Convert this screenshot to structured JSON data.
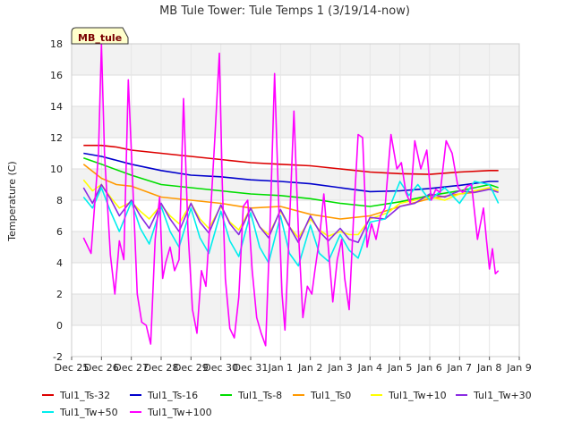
{
  "chart_data": {
    "type": "line",
    "title": "MB Tule Tower: Tule Temps 1 (3/19/14-now)",
    "ylabel": "Temperature (C)",
    "xlabel": "",
    "badge": "MB_tule",
    "x_ticks": [
      "Dec 25",
      "Dec 26",
      "Dec 27",
      "Dec 28",
      "Dec 29",
      "Dec 30",
      "Dec 31",
      "Jan 1",
      "Jan 2",
      "Jan 3",
      "Jan 4",
      "Jan 5",
      "Jan 6",
      "Jan 7",
      "Jan 8",
      "Jan 9"
    ],
    "y_ticks": [
      -2,
      0,
      2,
      4,
      6,
      8,
      10,
      12,
      14,
      16,
      18
    ],
    "xlim": [
      0,
      15
    ],
    "ylim": [
      -2,
      18
    ],
    "grid": true,
    "legend_position": "bottom",
    "series": [
      {
        "name": "Tul1_Ts-32",
        "color": "#dd0000",
        "x": [
          0.4,
          1.0,
          1.5,
          2.0,
          3.0,
          4.0,
          5.0,
          6.0,
          7.0,
          8.0,
          9.0,
          10.0,
          11.0,
          12.0,
          13.0,
          14.0,
          14.3
        ],
        "y": [
          11.5,
          11.5,
          11.4,
          11.2,
          11.0,
          10.8,
          10.6,
          10.4,
          10.3,
          10.2,
          10.0,
          9.8,
          9.7,
          9.65,
          9.8,
          9.9,
          9.9
        ]
      },
      {
        "name": "Tul1_Ts-16",
        "color": "#0000cc",
        "x": [
          0.4,
          1.0,
          2.0,
          3.0,
          4.0,
          5.0,
          6.0,
          7.0,
          8.0,
          9.0,
          10.0,
          11.0,
          12.0,
          13.0,
          14.0,
          14.3
        ],
        "y": [
          11.0,
          10.8,
          10.3,
          9.9,
          9.6,
          9.5,
          9.3,
          9.2,
          9.05,
          8.8,
          8.55,
          8.6,
          8.75,
          8.95,
          9.2,
          9.2
        ]
      },
      {
        "name": "Tul1_Ts-8",
        "color": "#00dd00",
        "x": [
          0.4,
          1.0,
          2.0,
          3.0,
          4.0,
          5.0,
          6.0,
          7.0,
          8.0,
          9.0,
          10.0,
          11.0,
          12.0,
          13.0,
          13.5,
          14.0,
          14.3
        ],
        "y": [
          10.7,
          10.3,
          9.6,
          9.0,
          8.8,
          8.6,
          8.4,
          8.3,
          8.1,
          7.8,
          7.6,
          7.9,
          8.3,
          8.6,
          8.8,
          9.0,
          8.8
        ]
      },
      {
        "name": "Tul1_Ts0",
        "color": "#ff9900",
        "x": [
          0.4,
          1.0,
          1.5,
          2.0,
          3.0,
          4.0,
          5.0,
          6.0,
          7.0,
          8.0,
          9.0,
          10.0,
          11.0,
          12.0,
          13.0,
          13.5,
          14.0,
          14.3
        ],
        "y": [
          10.3,
          9.4,
          9.0,
          8.9,
          8.2,
          8.0,
          7.8,
          7.5,
          7.6,
          7.1,
          6.8,
          7.0,
          7.6,
          8.1,
          8.4,
          8.5,
          8.8,
          8.6
        ]
      },
      {
        "name": "Tul1_Tw+10",
        "color": "#ffff00",
        "x": [
          0.4,
          0.7,
          1.0,
          1.3,
          1.6,
          2.0,
          2.3,
          2.6,
          3.0,
          3.3,
          3.6,
          4.0,
          4.3,
          4.6,
          5.0,
          5.3,
          5.6,
          6.0,
          6.3,
          6.6,
          7.0,
          7.3,
          7.6,
          8.0,
          8.3,
          8.6,
          9.0,
          9.3,
          9.6,
          10.0,
          10.3,
          10.6,
          11.0,
          11.5,
          12.0,
          12.5,
          13.0,
          13.5,
          14.0,
          14.3
        ],
        "y": [
          9.3,
          8.6,
          9.0,
          8.2,
          7.5,
          7.9,
          7.3,
          6.8,
          7.7,
          7.0,
          6.5,
          7.8,
          6.8,
          6.2,
          7.6,
          6.6,
          6.1,
          7.5,
          6.3,
          5.8,
          7.3,
          6.3,
          5.6,
          6.8,
          6.1,
          5.7,
          6.0,
          5.8,
          5.8,
          6.8,
          7.0,
          7.2,
          7.8,
          8.0,
          8.2,
          8.0,
          8.4,
          8.6,
          8.8,
          8.6
        ]
      },
      {
        "name": "Tul1_Tw+30",
        "color": "#8a2be2",
        "x": [
          0.4,
          0.7,
          1.0,
          1.3,
          1.6,
          2.0,
          2.3,
          2.6,
          3.0,
          3.3,
          3.6,
          4.0,
          4.3,
          4.6,
          5.0,
          5.3,
          5.6,
          6.0,
          6.3,
          6.6,
          7.0,
          7.3,
          7.6,
          8.0,
          8.3,
          8.6,
          9.0,
          9.3,
          9.6,
          10.0,
          10.5,
          11.0,
          11.5,
          12.0,
          12.5,
          13.0,
          13.5,
          14.0,
          14.3
        ],
        "y": [
          8.8,
          7.8,
          9.0,
          8.1,
          7.0,
          8.0,
          7.0,
          6.2,
          7.8,
          6.8,
          6.0,
          7.8,
          6.6,
          5.9,
          7.7,
          6.5,
          5.8,
          7.5,
          6.3,
          5.6,
          7.4,
          6.3,
          5.3,
          7.0,
          6.0,
          5.4,
          6.2,
          5.5,
          5.3,
          6.9,
          6.8,
          7.6,
          7.8,
          8.4,
          8.2,
          8.6,
          8.5,
          8.7,
          8.5
        ]
      },
      {
        "name": "Tul1_Tw+50",
        "color": "#00eeee",
        "x": [
          0.4,
          0.7,
          1.0,
          1.3,
          1.6,
          2.0,
          2.3,
          2.6,
          3.0,
          3.3,
          3.6,
          4.0,
          4.3,
          4.6,
          5.0,
          5.3,
          5.6,
          6.0,
          6.3,
          6.6,
          7.0,
          7.3,
          7.6,
          8.0,
          8.3,
          8.6,
          9.0,
          9.3,
          9.6,
          10.0,
          10.5,
          11.0,
          11.3,
          11.6,
          12.0,
          12.5,
          13.0,
          13.5,
          14.0,
          14.3
        ],
        "y": [
          8.2,
          7.5,
          8.8,
          7.3,
          6.0,
          7.9,
          6.2,
          5.2,
          7.6,
          6.0,
          5.0,
          7.5,
          5.6,
          4.6,
          7.3,
          5.4,
          4.4,
          7.2,
          5.0,
          4.0,
          7.0,
          4.6,
          3.8,
          6.4,
          4.6,
          4.1,
          5.8,
          4.8,
          4.3,
          6.6,
          6.8,
          9.2,
          8.3,
          9.0,
          8.0,
          8.8,
          7.8,
          9.2,
          9.0,
          7.8
        ]
      },
      {
        "name": "Tul1_Tw+100",
        "color": "#ff00ff",
        "x": [
          0.4,
          0.65,
          0.9,
          1.0,
          1.1,
          1.3,
          1.45,
          1.6,
          1.75,
          1.9,
          2.05,
          2.2,
          2.35,
          2.5,
          2.65,
          2.8,
          2.95,
          3.05,
          3.15,
          3.3,
          3.45,
          3.6,
          3.75,
          3.9,
          4.05,
          4.2,
          4.35,
          4.5,
          4.65,
          4.8,
          4.95,
          5.05,
          5.15,
          5.3,
          5.45,
          5.6,
          5.75,
          5.9,
          6.05,
          6.2,
          6.35,
          6.5,
          6.65,
          6.8,
          6.95,
          7.05,
          7.15,
          7.3,
          7.45,
          7.6,
          7.75,
          7.9,
          8.05,
          8.15,
          8.3,
          8.45,
          8.6,
          8.75,
          8.9,
          9.05,
          9.15,
          9.3,
          9.45,
          9.6,
          9.75,
          9.9,
          10.05,
          10.2,
          10.35,
          10.5,
          10.7,
          10.9,
          11.05,
          11.2,
          11.35,
          11.5,
          11.7,
          11.9,
          12.05,
          12.2,
          12.35,
          12.55,
          12.75,
          12.95,
          13.1,
          13.25,
          13.4,
          13.6,
          13.8,
          13.9,
          14.0,
          14.1,
          14.2,
          14.3
        ],
        "y": [
          5.6,
          4.6,
          11.0,
          18.0,
          11.0,
          4.5,
          2.0,
          5.4,
          4.2,
          15.7,
          9.0,
          2.0,
          0.2,
          0.0,
          -1.2,
          5.5,
          8.2,
          3.0,
          4.0,
          5.0,
          3.5,
          4.2,
          14.5,
          6.0,
          1.0,
          -0.5,
          3.5,
          2.5,
          7.0,
          12.0,
          17.4,
          9.0,
          3.0,
          -0.2,
          -0.8,
          1.8,
          7.6,
          8.0,
          3.5,
          0.5,
          -0.5,
          -1.3,
          6.5,
          16.1,
          7.0,
          2.0,
          -0.3,
          6.4,
          13.7,
          6.0,
          0.5,
          2.5,
          2.0,
          3.5,
          5.5,
          8.4,
          5.0,
          1.5,
          4.2,
          5.5,
          3.0,
          1.0,
          7.0,
          12.2,
          12.0,
          5.0,
          6.5,
          5.5,
          7.0,
          7.5,
          12.2,
          10.0,
          10.4,
          8.5,
          7.8,
          11.8,
          10.0,
          11.2,
          8.0,
          8.7,
          8.5,
          11.8,
          11.0,
          8.8,
          8.5,
          8.9,
          9.0,
          5.5,
          7.5,
          5.5,
          3.6,
          4.9,
          3.3,
          3.5
        ]
      }
    ]
  }
}
